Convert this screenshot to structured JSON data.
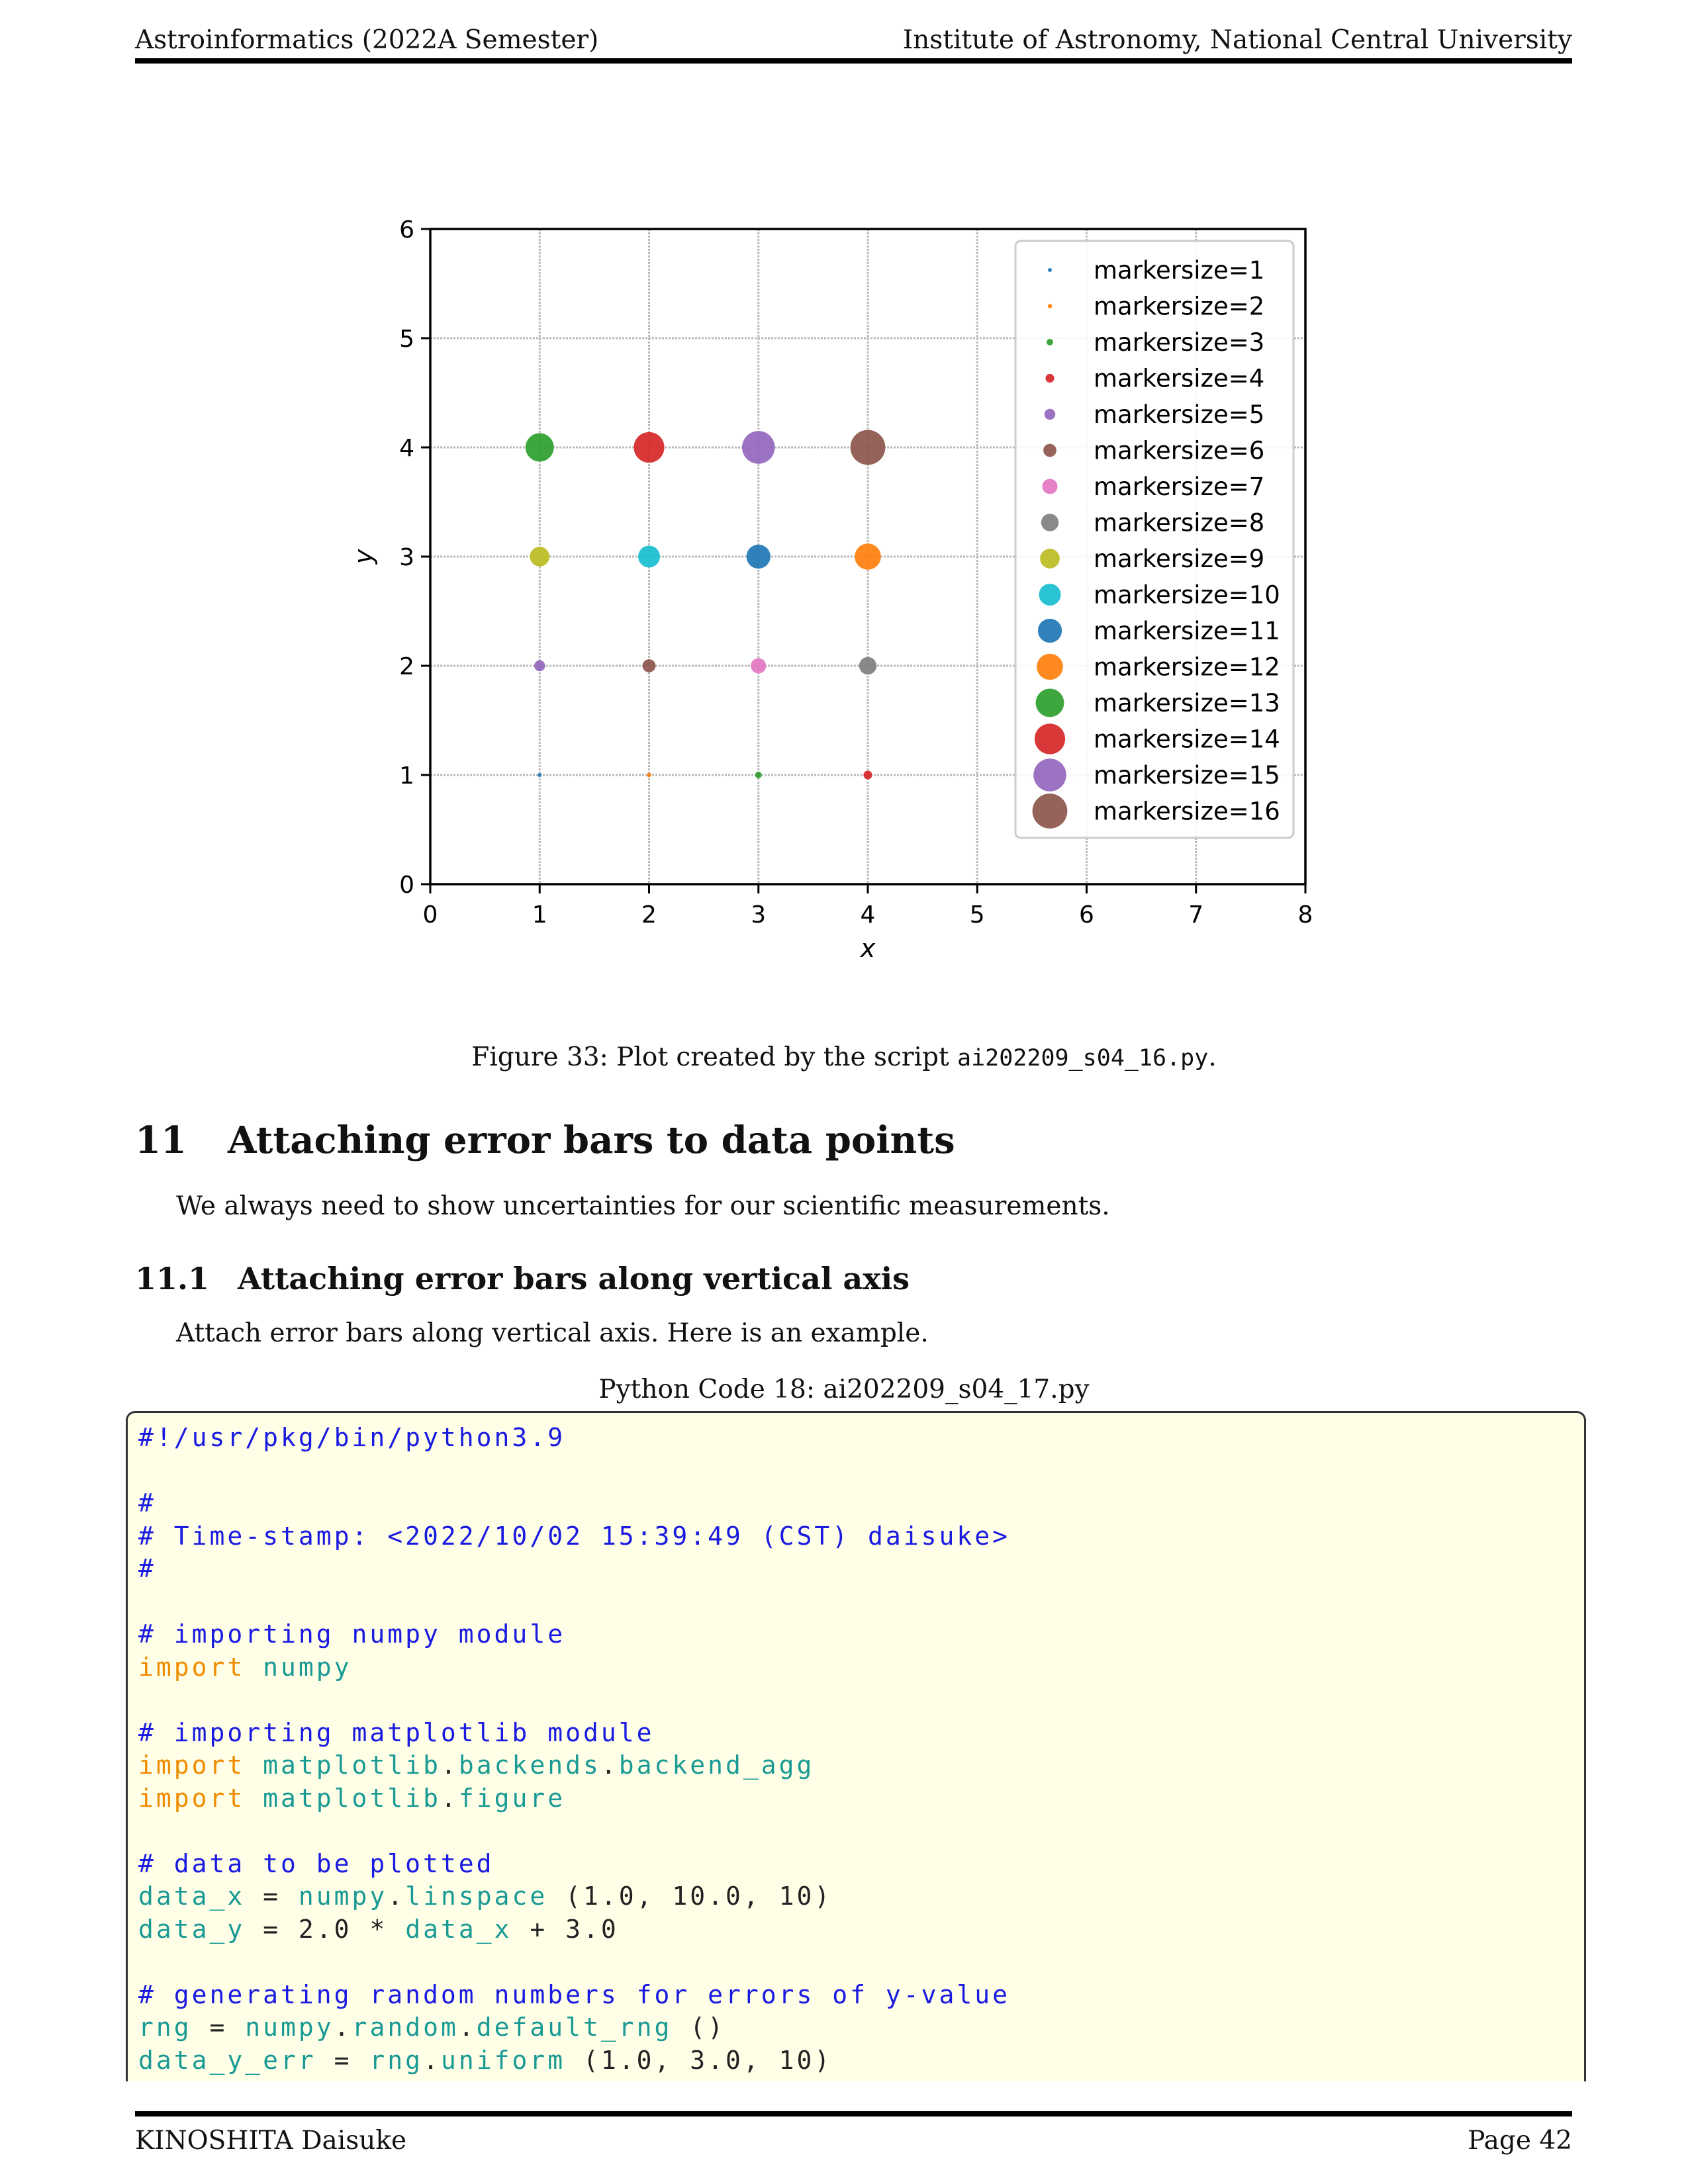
{
  "header": {
    "left": "Astroinformatics (2022A Semester)",
    "right": "Institute of Astronomy, National Central University"
  },
  "figure": {
    "caption_prefix": "Figure 33: Plot created by the script ",
    "caption_file": "ai202209_s04_16.py",
    "caption_suffix": "."
  },
  "chart_data": {
    "type": "scatter",
    "title": "",
    "xlabel": "x",
    "ylabel": "y",
    "xlim": [
      0,
      8
    ],
    "ylim": [
      0,
      6
    ],
    "xticks": [
      "0",
      "1",
      "2",
      "3",
      "4",
      "5",
      "6",
      "7",
      "8"
    ],
    "yticks": [
      "0",
      "1",
      "2",
      "3",
      "4",
      "5",
      "6"
    ],
    "grid": true,
    "legend_position": "upper-right",
    "series": [
      {
        "name": "markersize=1",
        "markersize": 1,
        "color": "#1f77b4",
        "x": [
          1
        ],
        "y": [
          1
        ]
      },
      {
        "name": "markersize=2",
        "markersize": 2,
        "color": "#ff7f0e",
        "x": [
          2
        ],
        "y": [
          1
        ]
      },
      {
        "name": "markersize=3",
        "markersize": 3,
        "color": "#2ca02c",
        "x": [
          3
        ],
        "y": [
          1
        ]
      },
      {
        "name": "markersize=4",
        "markersize": 4,
        "color": "#d62728",
        "x": [
          4
        ],
        "y": [
          1
        ]
      },
      {
        "name": "markersize=5",
        "markersize": 5,
        "color": "#9467bd",
        "x": [
          1
        ],
        "y": [
          2
        ]
      },
      {
        "name": "markersize=6",
        "markersize": 6,
        "color": "#8c564b",
        "x": [
          2
        ],
        "y": [
          2
        ]
      },
      {
        "name": "markersize=7",
        "markersize": 7,
        "color": "#e377c2",
        "x": [
          3
        ],
        "y": [
          2
        ]
      },
      {
        "name": "markersize=8",
        "markersize": 8,
        "color": "#7f7f7f",
        "x": [
          4
        ],
        "y": [
          2
        ]
      },
      {
        "name": "markersize=9",
        "markersize": 9,
        "color": "#bcbd22",
        "x": [
          1
        ],
        "y": [
          3
        ]
      },
      {
        "name": "markersize=10",
        "markersize": 10,
        "color": "#17becf",
        "x": [
          2
        ],
        "y": [
          3
        ]
      },
      {
        "name": "markersize=11",
        "markersize": 11,
        "color": "#1f77b4",
        "x": [
          3
        ],
        "y": [
          3
        ]
      },
      {
        "name": "markersize=12",
        "markersize": 12,
        "color": "#ff7f0e",
        "x": [
          4
        ],
        "y": [
          3
        ]
      },
      {
        "name": "markersize=13",
        "markersize": 13,
        "color": "#2ca02c",
        "x": [
          1
        ],
        "y": [
          4
        ]
      },
      {
        "name": "markersize=14",
        "markersize": 14,
        "color": "#d62728",
        "x": [
          2
        ],
        "y": [
          4
        ]
      },
      {
        "name": "markersize=15",
        "markersize": 15,
        "color": "#9467bd",
        "x": [
          3
        ],
        "y": [
          4
        ]
      },
      {
        "name": "markersize=16",
        "markersize": 16,
        "color": "#8c564b",
        "x": [
          4
        ],
        "y": [
          4
        ]
      }
    ]
  },
  "section": {
    "number": "11",
    "title": "Attaching error bars to data points",
    "paragraph": "We always need to show uncertainties for our scientific measurements."
  },
  "subsection": {
    "number": "11.1",
    "title": "Attaching error bars along vertical axis",
    "paragraph": "Attach error bars along vertical axis. Here is an example."
  },
  "code": {
    "title": "Python Code 18: ai202209_s04_17.py",
    "lines": [
      [
        {
          "t": "#!/usr/pkg/bin/python3.9",
          "c": "comment"
        }
      ],
      [],
      [
        {
          "t": "#",
          "c": "comment"
        }
      ],
      [
        {
          "t": "# Time-stamp: <2022/10/02 15:39:49 (CST) daisuke>",
          "c": "comment"
        }
      ],
      [
        {
          "t": "#",
          "c": "comment"
        }
      ],
      [],
      [
        {
          "t": "# importing numpy module",
          "c": "comment"
        }
      ],
      [
        {
          "t": "import",
          "c": "kw"
        },
        {
          "t": " ",
          "c": "plain"
        },
        {
          "t": "numpy",
          "c": "name"
        }
      ],
      [],
      [
        {
          "t": "# importing matplotlib module",
          "c": "comment"
        }
      ],
      [
        {
          "t": "import",
          "c": "kw"
        },
        {
          "t": " ",
          "c": "plain"
        },
        {
          "t": "matplotlib",
          "c": "name"
        },
        {
          "t": ".",
          "c": "plain"
        },
        {
          "t": "backends",
          "c": "name"
        },
        {
          "t": ".",
          "c": "plain"
        },
        {
          "t": "backend_agg",
          "c": "name"
        }
      ],
      [
        {
          "t": "import",
          "c": "kw"
        },
        {
          "t": " ",
          "c": "plain"
        },
        {
          "t": "matplotlib",
          "c": "name"
        },
        {
          "t": ".",
          "c": "plain"
        },
        {
          "t": "figure",
          "c": "name"
        }
      ],
      [],
      [
        {
          "t": "# data to be plotted",
          "c": "comment"
        }
      ],
      [
        {
          "t": "data_x",
          "c": "name"
        },
        {
          "t": " = ",
          "c": "plain"
        },
        {
          "t": "numpy",
          "c": "name"
        },
        {
          "t": ".",
          "c": "plain"
        },
        {
          "t": "linspace",
          "c": "name"
        },
        {
          "t": " (1.0, 10.0, 10)",
          "c": "plain"
        }
      ],
      [
        {
          "t": "data_y",
          "c": "name"
        },
        {
          "t": " = 2.0 * ",
          "c": "plain"
        },
        {
          "t": "data_x",
          "c": "name"
        },
        {
          "t": " + 3.0",
          "c": "plain"
        }
      ],
      [],
      [
        {
          "t": "# generating random numbers for errors of y-value",
          "c": "comment"
        }
      ],
      [
        {
          "t": "rng",
          "c": "name"
        },
        {
          "t": " = ",
          "c": "plain"
        },
        {
          "t": "numpy",
          "c": "name"
        },
        {
          "t": ".",
          "c": "plain"
        },
        {
          "t": "random",
          "c": "name"
        },
        {
          "t": ".",
          "c": "plain"
        },
        {
          "t": "default_rng",
          "c": "name"
        },
        {
          "t": " ()",
          "c": "plain"
        }
      ],
      [
        {
          "t": "data_y_err",
          "c": "name"
        },
        {
          "t": " = ",
          "c": "plain"
        },
        {
          "t": "rng",
          "c": "name"
        },
        {
          "t": ".",
          "c": "plain"
        },
        {
          "t": "uniform",
          "c": "name"
        },
        {
          "t": " (1.0, 3.0, 10)",
          "c": "plain"
        }
      ]
    ]
  },
  "footer": {
    "left": "KINOSHITA Daisuke",
    "right": "Page 42"
  }
}
